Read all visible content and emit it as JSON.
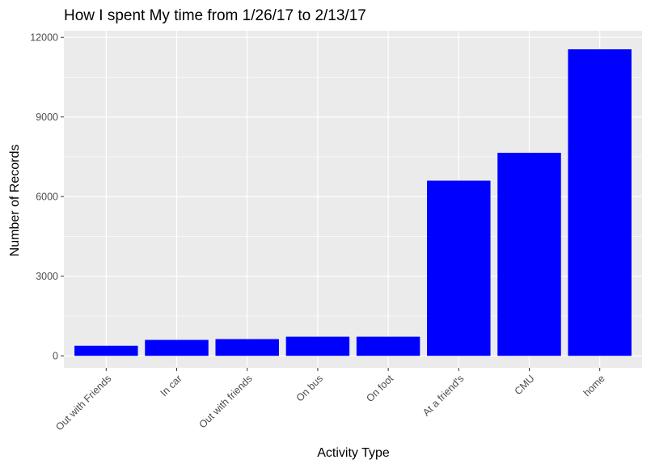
{
  "chart_data": {
    "type": "bar",
    "title": "How I spent My time from 1/26/17 to 2/13/17",
    "xlabel": "Activity Type",
    "ylabel": "Number of Records",
    "categories": [
      "Out with Friends",
      "In car",
      "Out with friends",
      "On bus",
      "On foot",
      "At a friend's",
      "CMU",
      "home"
    ],
    "values": [
      380,
      600,
      630,
      720,
      720,
      6600,
      7650,
      11550
    ],
    "ylim": [
      -450,
      12250
    ],
    "yticks": [
      0,
      3000,
      6000,
      9000,
      12000
    ],
    "ytick_labels": [
      "0",
      "3000",
      "6000",
      "9000",
      "12000"
    ],
    "grid": true,
    "bar_color": "#0000ff",
    "panel_background": "#ebebeb",
    "grid_color": "#ffffff"
  }
}
